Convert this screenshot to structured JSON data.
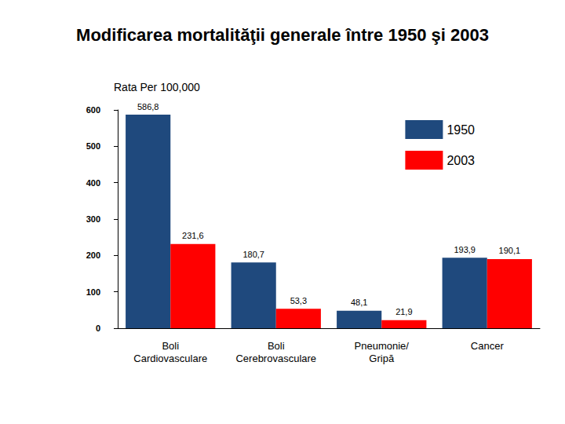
{
  "chart_data": {
    "type": "bar",
    "title": "Modificarea mortalităţii generale între 1950 şi 2003",
    "y_label": "Rata Per 100,000",
    "categories": [
      "Boli Cardiovasculare",
      "Boli Cerebrovasculare",
      "Pneumonie/ Gripă",
      "Cancer"
    ],
    "series": [
      {
        "name": "1950",
        "color": "#1f497d",
        "values": [
          586.8,
          180.7,
          48.1,
          193.9
        ],
        "value_labels": [
          "586,8",
          "180,7",
          "48,1",
          "193,9"
        ]
      },
      {
        "name": "2003",
        "color": "#ff0000",
        "values": [
          231.6,
          53.3,
          21.9,
          190.1
        ],
        "value_labels": [
          "231,6",
          "53,3",
          "21,9",
          "190,1"
        ]
      }
    ],
    "ylim": [
      0,
      600
    ],
    "yticks": [
      0,
      100,
      200,
      300,
      400,
      500,
      600
    ],
    "grid": false,
    "legend": "top-right",
    "data_labels": true
  }
}
